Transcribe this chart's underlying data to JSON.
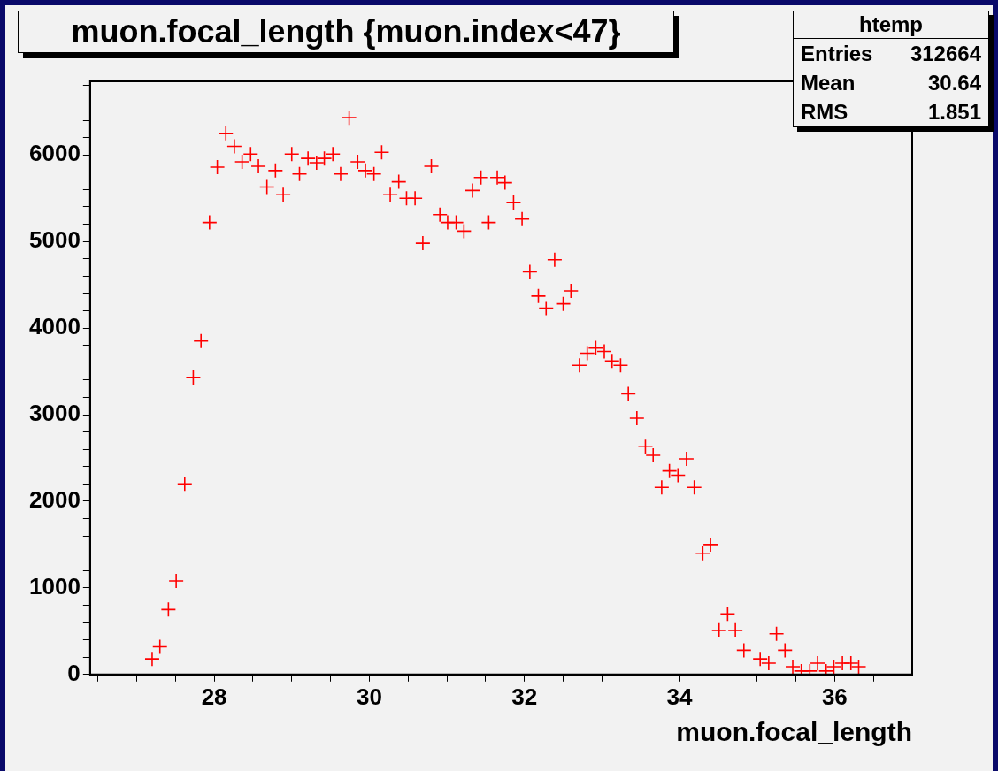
{
  "chart_data": {
    "type": "scatter",
    "title": "muon.focal_length {muon.index<47}",
    "xlabel": "muon.focal_length",
    "annotations": [
      "htemp",
      "Entries",
      "312664",
      "Mean",
      "30.64",
      "RMS",
      "1.851"
    ],
    "x": [
      27.2,
      27.3,
      27.41,
      27.51,
      27.62,
      27.73,
      27.83,
      27.94,
      28.04,
      28.15,
      28.26,
      28.36,
      28.47,
      28.57,
      28.68,
      28.79,
      28.89,
      29.0,
      29.1,
      29.21,
      29.32,
      29.42,
      29.53,
      29.63,
      29.74,
      29.85,
      29.95,
      30.06,
      30.16,
      30.27,
      30.38,
      30.48,
      30.59,
      30.69,
      30.8,
      30.91,
      31.01,
      31.12,
      31.22,
      31.33,
      31.44,
      31.54,
      31.65,
      31.75,
      31.86,
      31.97,
      32.07,
      32.18,
      32.28,
      32.39,
      32.5,
      32.6,
      32.71,
      32.81,
      32.92,
      33.03,
      33.13,
      33.24,
      33.34,
      33.45,
      33.56,
      33.66,
      33.77,
      33.87,
      33.98,
      34.09,
      34.19,
      34.3,
      34.4,
      34.51,
      34.62,
      34.72,
      34.83,
      35.04,
      35.15,
      35.25,
      35.36,
      35.46,
      35.57,
      35.68,
      35.78,
      35.89,
      35.99,
      36.1,
      36.21,
      36.31
    ],
    "values": [
      180,
      320,
      750,
      1080,
      2200,
      3430,
      3850,
      5220,
      5860,
      6250,
      6100,
      5920,
      6010,
      5870,
      5630,
      5820,
      5540,
      6010,
      5780,
      5960,
      5910,
      5960,
      6010,
      5780,
      6430,
      5920,
      5820,
      5780,
      6030,
      5540,
      5690,
      5500,
      5500,
      4980,
      5870,
      5310,
      5220,
      5220,
      5120,
      5590,
      5740,
      5220,
      5740,
      5680,
      5450,
      5260,
      4650,
      4370,
      4230,
      4790,
      4280,
      4430,
      3570,
      3710,
      3770,
      3730,
      3620,
      3570,
      3240,
      2960,
      2630,
      2530,
      2160,
      2350,
      2300,
      2490,
      2160,
      1400,
      1500,
      510,
      700,
      510,
      280,
      180,
      130,
      470,
      280,
      90,
      40,
      40,
      130,
      40,
      90,
      130,
      130,
      90
    ],
    "color": "#ff0000",
    "marker": "cross",
    "xlim": [
      26.4,
      37.0
    ],
    "xticks": [
      {
        "value": 26.5,
        "label": null
      },
      {
        "value": 27,
        "label": null
      },
      {
        "value": 27.5,
        "label": null
      },
      28,
      {
        "value": 28.5,
        "label": null
      },
      {
        "value": 29,
        "label": null
      },
      {
        "value": 29.5,
        "label": null
      },
      30,
      {
        "value": 30.5,
        "label": null
      },
      {
        "value": 31,
        "label": null
      },
      {
        "value": 31.5,
        "label": null
      },
      32,
      {
        "value": 32.5,
        "label": null
      },
      {
        "value": 33,
        "label": null
      },
      {
        "value": 33.5,
        "label": null
      },
      34,
      {
        "value": 34.5,
        "label": null
      },
      {
        "value": 35,
        "label": null
      },
      {
        "value": 35.5,
        "label": null
      },
      36,
      {
        "value": 36.5,
        "label": null
      }
    ],
    "ylim": [
      0,
      6850
    ],
    "yticks": [
      0,
      {
        "value": 200,
        "label": null
      },
      {
        "value": 400,
        "label": null
      },
      {
        "value": 600,
        "label": null
      },
      {
        "value": 800,
        "label": null
      },
      1000,
      {
        "value": 1200,
        "label": null
      },
      {
        "value": 1400,
        "label": null
      },
      {
        "value": 1600,
        "label": null
      },
      {
        "value": 1800,
        "label": null
      },
      2000,
      {
        "value": 2200,
        "label": null
      },
      {
        "value": 2400,
        "label": null
      },
      {
        "value": 2600,
        "label": null
      },
      {
        "value": 2800,
        "label": null
      },
      3000,
      {
        "value": 3200,
        "label": null
      },
      {
        "value": 3400,
        "label": null
      },
      {
        "value": 3600,
        "label": null
      },
      {
        "value": 3800,
        "label": null
      },
      4000,
      {
        "value": 4200,
        "label": null
      },
      {
        "value": 4400,
        "label": null
      },
      {
        "value": 4600,
        "label": null
      },
      {
        "value": 4800,
        "label": null
      },
      5000,
      {
        "value": 5200,
        "label": null
      },
      {
        "value": 5400,
        "label": null
      },
      {
        "value": 5600,
        "label": null
      },
      {
        "value": 5800,
        "label": null
      },
      6000,
      {
        "value": 6200,
        "label": null
      },
      {
        "value": 6400,
        "label": null
      },
      {
        "value": 6600,
        "label": null
      },
      {
        "value": 6800,
        "label": null
      }
    ],
    "grid": false,
    "legend": false
  }
}
